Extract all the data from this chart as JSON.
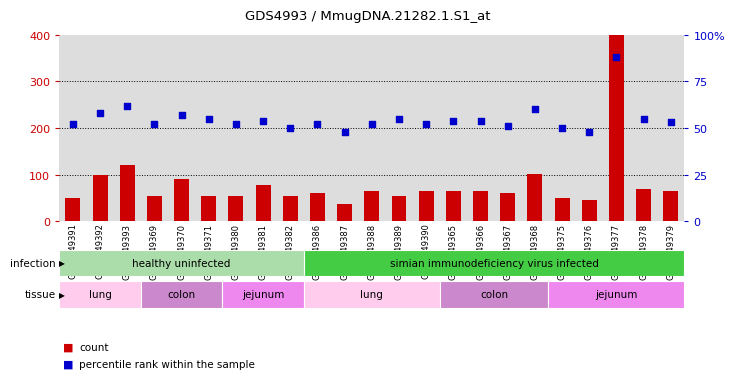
{
  "title": "GDS4993 / MmugDNA.21282.1.S1_at",
  "samples": [
    "GSM1249391",
    "GSM1249392",
    "GSM1249393",
    "GSM1249369",
    "GSM1249370",
    "GSM1249371",
    "GSM1249380",
    "GSM1249381",
    "GSM1249382",
    "GSM1249386",
    "GSM1249387",
    "GSM1249388",
    "GSM1249389",
    "GSM1249390",
    "GSM1249365",
    "GSM1249366",
    "GSM1249367",
    "GSM1249368",
    "GSM1249375",
    "GSM1249376",
    "GSM1249377",
    "GSM1249378",
    "GSM1249379"
  ],
  "counts": [
    50,
    100,
    120,
    55,
    90,
    55,
    55,
    78,
    55,
    60,
    38,
    65,
    55,
    65,
    66,
    65,
    60,
    102,
    50,
    45,
    400,
    70,
    65
  ],
  "percentiles": [
    52,
    58,
    62,
    52,
    57,
    55,
    52,
    54,
    50,
    52,
    48,
    52,
    55,
    52,
    54,
    54,
    51,
    60,
    50,
    48,
    88,
    55,
    53
  ],
  "bar_color": "#cc0000",
  "dot_color": "#0000cc",
  "left_yaxis_ticks": [
    0,
    100,
    200,
    300,
    400
  ],
  "left_yaxis_color": "#cc0000",
  "right_yaxis_ticks": [
    0,
    25,
    50,
    75,
    100
  ],
  "right_yaxis_labels": [
    "0",
    "25",
    "50",
    "75",
    "100%"
  ],
  "right_yaxis_color": "#0000cc",
  "grid_values": [
    100,
    200,
    300
  ],
  "infection_groups": [
    {
      "label": "healthy uninfected",
      "start": 0,
      "end": 9,
      "color": "#aaddaa"
    },
    {
      "label": "simian immunodeficiency virus infected",
      "start": 9,
      "end": 23,
      "color": "#44cc44"
    }
  ],
  "tissue_groups": [
    {
      "label": "lung",
      "start": 0,
      "end": 3,
      "color": "#ffccee"
    },
    {
      "label": "colon",
      "start": 3,
      "end": 6,
      "color": "#cc88cc"
    },
    {
      "label": "jejunum",
      "start": 6,
      "end": 9,
      "color": "#ee88ee"
    },
    {
      "label": "lung",
      "start": 9,
      "end": 14,
      "color": "#ffccee"
    },
    {
      "label": "colon",
      "start": 14,
      "end": 18,
      "color": "#cc88cc"
    },
    {
      "label": "jejunum",
      "start": 18,
      "end": 23,
      "color": "#ee88ee"
    }
  ],
  "infection_label": "infection",
  "tissue_label": "tissue",
  "legend_count": "count",
  "legend_percentile": "percentile rank within the sample",
  "plot_bg": "#dddddd",
  "fig_bg": "#ffffff"
}
